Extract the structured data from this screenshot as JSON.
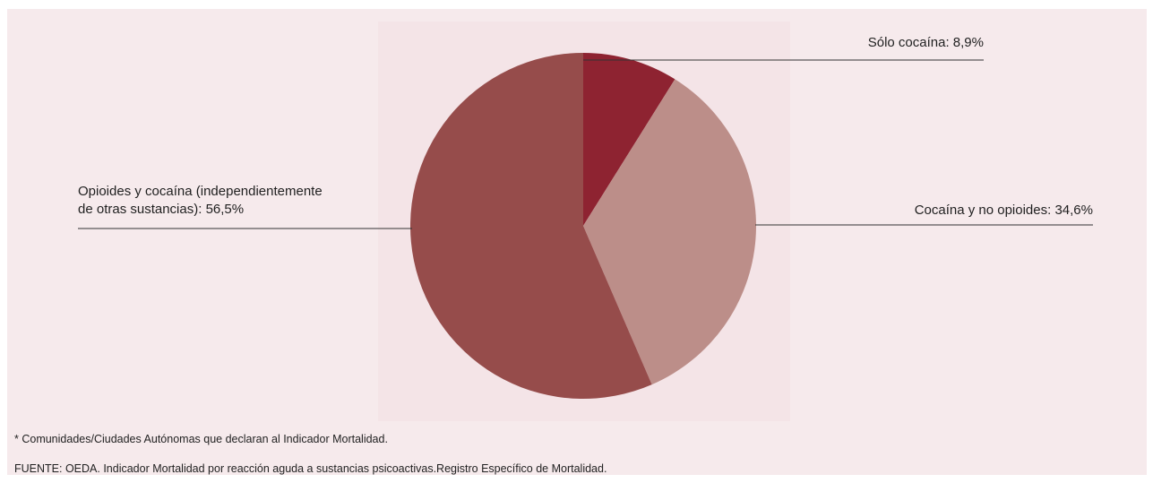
{
  "colors": {
    "panel_bg": "#f6eaec",
    "plot_bg": "#f4e4e7",
    "leader_line": "#333333"
  },
  "chart_data": {
    "type": "pie",
    "title": "",
    "slices": [
      {
        "label": "Sólo cocaína: 8,9%",
        "value": 8.9,
        "color": "#8e2331",
        "label_position": "top-right"
      },
      {
        "label": "Cocaína y no opioides: 34,6%",
        "value": 34.6,
        "color": "#bc8e89",
        "label_position": "right"
      },
      {
        "label": [
          "Opioides y cocaína (independientemente",
          "de otras sustancias): 56,5%"
        ],
        "value": 56.5,
        "color": "#964c4b",
        "label_position": "left"
      }
    ],
    "start_angle_deg": 0,
    "direction": "clockwise"
  },
  "footnote": "* Comunidades/Ciudades Autónomas que declaran al Indicador Mortalidad.",
  "source": "FUENTE: OEDA. Indicador Mortalidad por reacción aguda a sustancias psicoactivas.Registro Específico de Mortalidad."
}
